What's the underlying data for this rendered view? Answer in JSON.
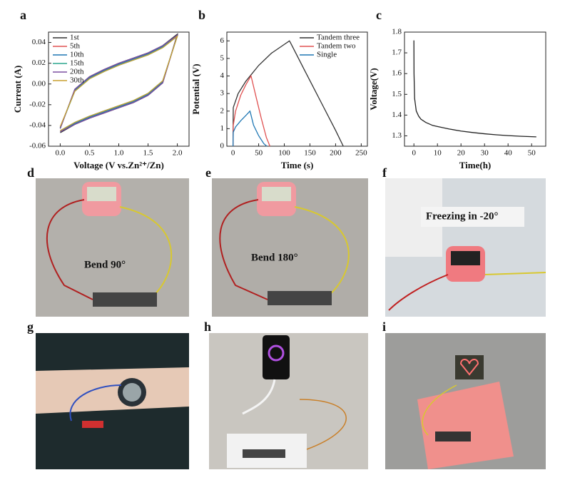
{
  "chart_data": [
    {
      "type": "line",
      "panel": "a",
      "xlabel": "Voltage (V vs.Zn²⁺/Zn)",
      "ylabel": "Current (A)",
      "x": [
        0,
        0.25,
        0.5,
        0.75,
        1.0,
        1.25,
        1.5,
        1.75,
        2.0,
        2.0,
        1.75,
        1.5,
        1.25,
        1.0,
        0.75,
        0.5,
        0.25,
        0
      ],
      "series": [
        {
          "name": "1st",
          "color": "#333333",
          "values": [
            -0.047,
            -0.039,
            -0.033,
            -0.028,
            -0.023,
            -0.018,
            -0.011,
            0.001,
            0.048,
            0.048,
            0.037,
            0.03,
            0.025,
            0.02,
            0.014,
            0.007,
            -0.005,
            -0.043
          ]
        },
        {
          "name": "5th",
          "color": "#e05050",
          "values": [
            -0.046,
            -0.038,
            -0.032,
            -0.027,
            -0.022,
            -0.017,
            -0.01,
            0.002,
            0.047,
            0.047,
            0.036,
            0.029,
            0.024,
            0.019,
            0.013,
            0.006,
            -0.006,
            -0.042
          ]
        },
        {
          "name": "10th",
          "color": "#1f77b4",
          "values": [
            -0.046,
            -0.038,
            -0.032,
            -0.027,
            -0.022,
            -0.017,
            -0.01,
            0.002,
            0.047,
            0.047,
            0.036,
            0.029,
            0.024,
            0.019,
            0.013,
            0.006,
            -0.006,
            -0.042
          ]
        },
        {
          "name": "15th",
          "color": "#2ca58d",
          "values": [
            -0.045,
            -0.037,
            -0.031,
            -0.026,
            -0.021,
            -0.016,
            -0.009,
            0.003,
            0.046,
            0.046,
            0.035,
            0.028,
            0.023,
            0.018,
            0.012,
            0.005,
            -0.007,
            -0.042
          ]
        },
        {
          "name": "20th",
          "color": "#7b4fa0",
          "values": [
            -0.046,
            -0.039,
            -0.033,
            -0.028,
            -0.023,
            -0.018,
            -0.011,
            0.001,
            0.047,
            0.047,
            0.037,
            0.03,
            0.025,
            0.02,
            0.014,
            0.007,
            -0.005,
            -0.043
          ]
        },
        {
          "name": "30th",
          "color": "#c8a030",
          "values": [
            -0.045,
            -0.037,
            -0.031,
            -0.026,
            -0.021,
            -0.016,
            -0.009,
            0.003,
            0.046,
            0.046,
            0.035,
            0.028,
            0.023,
            0.018,
            0.012,
            0.005,
            -0.007,
            -0.041
          ]
        }
      ],
      "xlim": [
        -0.2,
        2.2
      ],
      "xticks": [
        {
          "value": 0,
          "label": "0.0"
        },
        0.5,
        {
          "value": 1,
          "label": "1.0"
        },
        1.5,
        {
          "value": 2,
          "label": "2.0"
        }
      ],
      "ylim": [
        -0.06,
        0.05
      ],
      "yticks": [
        -0.06,
        -0.04,
        -0.02,
        {
          "value": 0,
          "label": "0.00"
        },
        0.02,
        0.04
      ],
      "legend": "upper left"
    },
    {
      "type": "line",
      "panel": "b",
      "xlabel": "Time (s)",
      "ylabel": "Potential (V)",
      "series": [
        {
          "name": "Tandem  three",
          "color": "#333333",
          "x": [
            0,
            0.5,
            10,
            25,
            50,
            75,
            100,
            110,
            112,
            140,
            170,
            200,
            215
          ],
          "values": [
            0,
            2.2,
            3.0,
            3.7,
            4.6,
            5.3,
            5.8,
            6.0,
            5.9,
            4.3,
            2.6,
            0.9,
            0
          ]
        },
        {
          "name": "Tandem  two",
          "color": "#e05050",
          "x": [
            0,
            0.5,
            5,
            15,
            25,
            35,
            36,
            45,
            55,
            65,
            72
          ],
          "values": [
            0,
            1.2,
            2.0,
            2.9,
            3.5,
            4.0,
            3.9,
            2.8,
            1.6,
            0.5,
            0
          ]
        },
        {
          "name": "Single",
          "color": "#1f77b4",
          "x": [
            0,
            0.5,
            5,
            15,
            25,
            33,
            34,
            40,
            50,
            60,
            66
          ],
          "values": [
            0,
            0.8,
            1.1,
            1.45,
            1.75,
            2.0,
            1.9,
            1.2,
            0.6,
            0.15,
            0
          ]
        }
      ],
      "xlim": [
        -12,
        262
      ],
      "xticks": [
        0,
        50,
        100,
        150,
        200,
        250
      ],
      "ylim": [
        0,
        6.5
      ],
      "yticks": [
        0,
        1,
        2,
        3,
        4,
        5,
        6
      ],
      "legend": "upper right"
    },
    {
      "type": "line",
      "panel": "c",
      "xlabel": "Time(h)",
      "ylabel": "Voltage(V)",
      "x": [
        0,
        0.05,
        0.3,
        1,
        2,
        3,
        5,
        8,
        10,
        15,
        20,
        25,
        30,
        35,
        40,
        45,
        50,
        52
      ],
      "series": [
        {
          "color": "#222222",
          "values": [
            1.76,
            1.6,
            1.48,
            1.42,
            1.395,
            1.38,
            1.365,
            1.35,
            1.345,
            1.333,
            1.323,
            1.316,
            1.31,
            1.305,
            1.301,
            1.298,
            1.296,
            1.295
          ]
        }
      ],
      "xlim": [
        -4,
        56
      ],
      "xticks": [
        0,
        10,
        20,
        30,
        40,
        50
      ],
      "ylim": [
        1.25,
        1.8
      ],
      "yticks": [
        1.3,
        1.4,
        1.5,
        1.6,
        1.7,
        1.8
      ]
    }
  ],
  "photos": [
    {
      "label": "d",
      "caption": "Bend 90°"
    },
    {
      "label": "e",
      "caption": "Bend 180°"
    },
    {
      "label": "f",
      "caption": "Freezing in -20°"
    },
    {
      "label": "g"
    },
    {
      "label": "h"
    },
    {
      "label": "i"
    }
  ]
}
